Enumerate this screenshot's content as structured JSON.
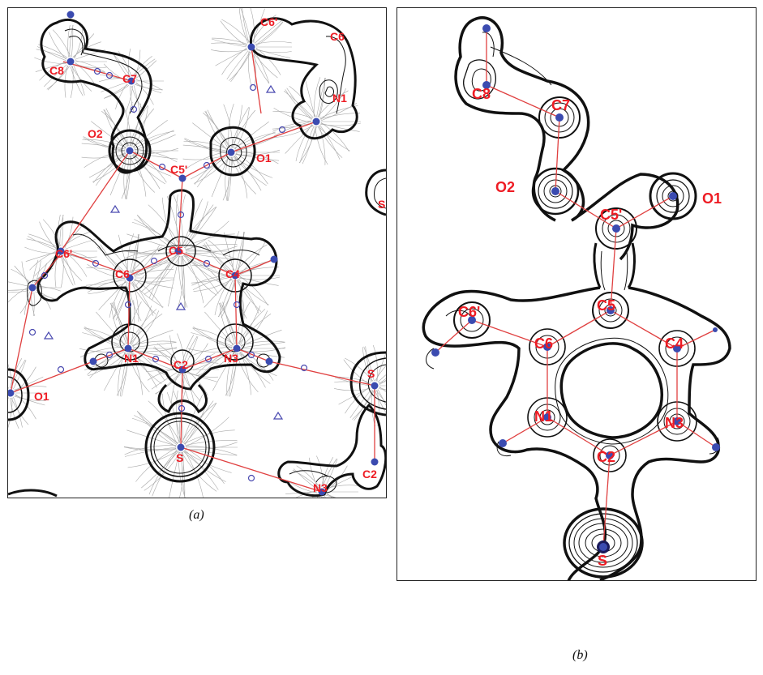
{
  "colors": {
    "atom": "#3b4bb0",
    "label": "#ee1c24",
    "bond_path": "#e04040",
    "critical_point": "#4a4ab0",
    "contour": "#111111",
    "gradient_line": "#9a9a9a"
  },
  "panel_a": {
    "caption": "(a)",
    "atom_labels": {
      "c8": "C8",
      "c7": "C7",
      "c6p_top": "C6'",
      "c6_top": "C6",
      "n1_top": "N1",
      "o2": "O2",
      "o1": "O1",
      "c5p": "C5'",
      "s_right": "S",
      "c6p": "C6'",
      "c5": "C5",
      "c6": "C6",
      "c4": "C4",
      "n1": "N1",
      "n3": "N3",
      "c2": "C2",
      "o1_left": "O1",
      "s_right_lower": "S",
      "s": "S",
      "c2_right": "C2",
      "n3_bottom": "N3"
    }
  },
  "panel_b": {
    "caption": "(b)",
    "atom_labels": {
      "c8": "C8",
      "c7": "C7",
      "o2": "O2",
      "c5p": "C5'",
      "o1": "O1",
      "c6p": "C6'",
      "c5": "C5",
      "c6": "C6",
      "c4": "C4",
      "n1": "N1",
      "n3": "N3",
      "c2": "C2",
      "s": "S"
    }
  }
}
